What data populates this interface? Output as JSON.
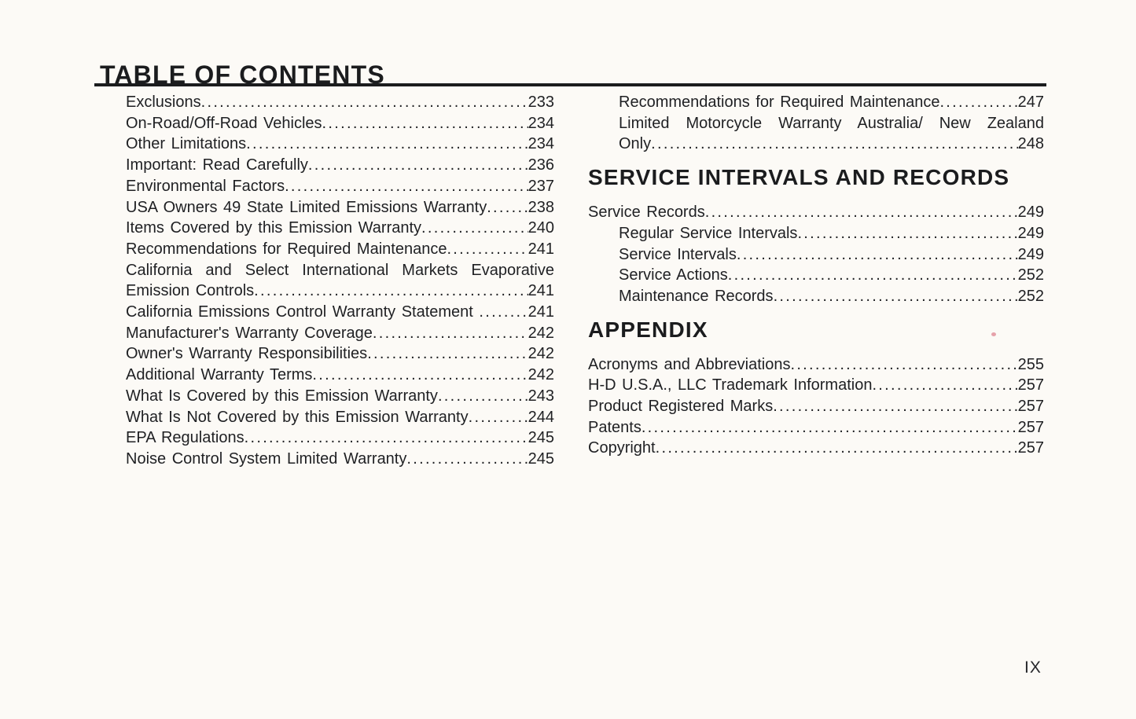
{
  "doc": {
    "title": "TABLE OF CONTENTS",
    "folio": "IX"
  },
  "colors": {
    "paper": "#fcfaf6",
    "ink": "#1f2023",
    "artifact_dot": "#df8390"
  },
  "left": {
    "entries": [
      {
        "label": "Exclusions",
        "page": "233"
      },
      {
        "label": "On-Road/Off-Road Vehicles",
        "page": "234"
      },
      {
        "label": "Other Limitations",
        "page": "234"
      },
      {
        "label": "Important: Read Carefully",
        "page": "236"
      },
      {
        "label": "Environmental Factors",
        "page": "237"
      },
      {
        "label": "USA Owners 49 State Limited Emissions Warranty",
        "page": "238"
      },
      {
        "label": "Items Covered by this Emission Warranty",
        "page": "240"
      },
      {
        "label": "Recommendations for Required Maintenance",
        "page": "241"
      },
      {
        "line1": "California and Select International Markets Evaporative",
        "label": "Emission Controls",
        "page": "241"
      },
      {
        "label": "California Emissions Control Warranty Statement ",
        "page": "241"
      },
      {
        "label": "Manufacturer's Warranty Coverage",
        "page": "242"
      },
      {
        "label": "Owner's Warranty Responsibilities",
        "page": "242"
      },
      {
        "label": "Additional Warranty Terms",
        "page": "242"
      },
      {
        "label": "What Is Covered by this Emission Warranty",
        "page": "243"
      },
      {
        "label": "What Is Not Covered by this Emission Warranty",
        "page": "244"
      },
      {
        "label": "EPA Regulations",
        "page": "245"
      },
      {
        "label": "Noise Control System Limited Warranty",
        "page": "245"
      }
    ]
  },
  "right": {
    "intro": [
      {
        "label": "Recommendations for Required Maintenance",
        "page": "247"
      },
      {
        "line1": "Limited Motorcycle Warranty Australia/ New Zealand",
        "label": "Only",
        "page": "248"
      }
    ],
    "sections": [
      {
        "title": "SERVICE INTERVALS AND RECORDS",
        "entries": [
          {
            "label": "Service Records",
            "page": "249",
            "indent": false
          },
          {
            "label": "Regular Service Intervals",
            "page": "249",
            "indent": true
          },
          {
            "label": "Service Intervals",
            "page": "249",
            "indent": true
          },
          {
            "label": "Service Actions",
            "page": "252",
            "indent": true
          },
          {
            "label": "Maintenance Records",
            "page": "252",
            "indent": true
          }
        ]
      },
      {
        "title": "APPENDIX",
        "entries": [
          {
            "label": "Acronyms and Abbreviations",
            "page": "255",
            "indent": false
          },
          {
            "label": "H-D U.S.A., LLC Trademark Information",
            "page": "257",
            "indent": false
          },
          {
            "label": "Product Registered Marks",
            "page": "257",
            "indent": false
          },
          {
            "label": "Patents",
            "page": "257",
            "indent": false
          },
          {
            "label": "Copyright",
            "page": "257",
            "indent": false
          }
        ]
      }
    ]
  }
}
